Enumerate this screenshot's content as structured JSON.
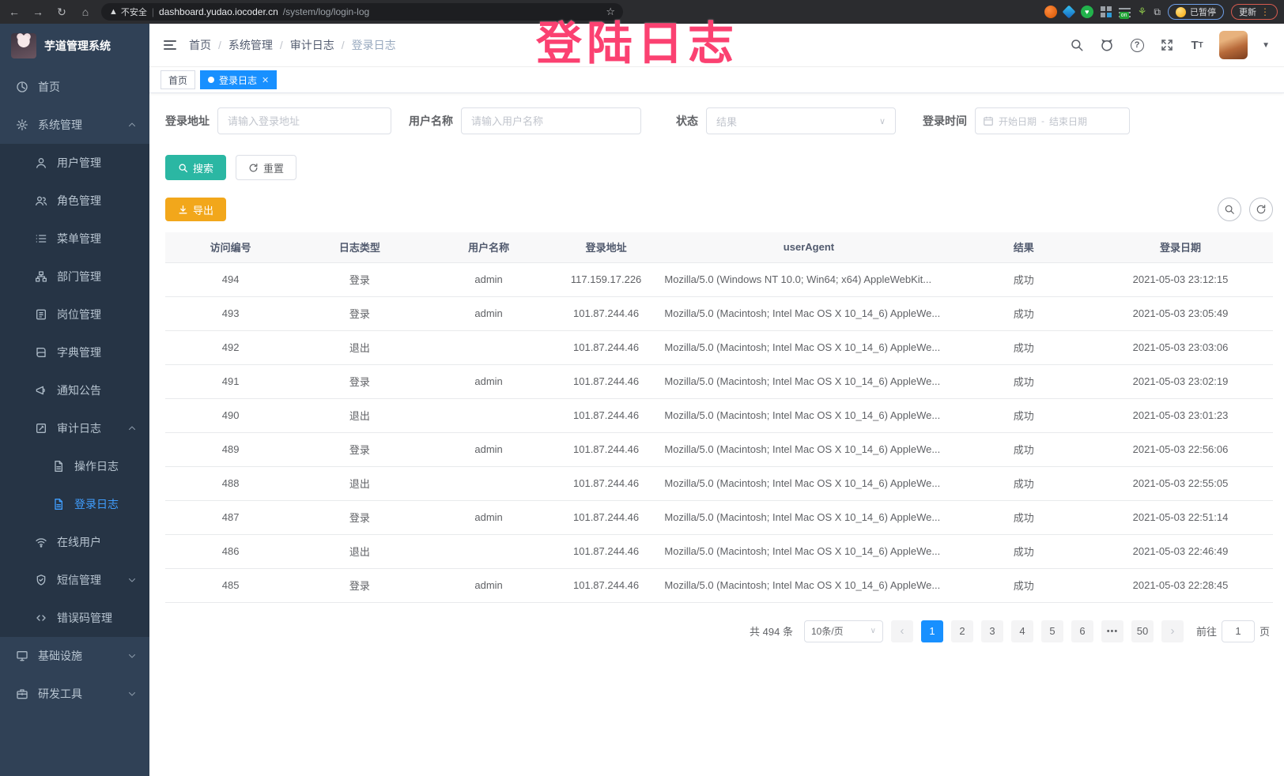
{
  "overlay": {
    "text": "登陆日志",
    "color": "#fb4171"
  },
  "browser": {
    "security_label": "不安全",
    "url_host": "dashboard.yudao.iocoder.cn",
    "url_path": "/system/log/login-log",
    "ext_badge": "on",
    "paused_label": "已暂停",
    "update_label": "更新"
  },
  "app": {
    "title": "芋道管理系统"
  },
  "breadcrumb": {
    "items": [
      "首页",
      "系统管理",
      "审计日志",
      "登录日志"
    ]
  },
  "tabs": [
    {
      "label": "首页",
      "active": false
    },
    {
      "label": "登录日志",
      "active": true
    }
  ],
  "sidebar": {
    "items": [
      {
        "label": "首页",
        "icon": "dashboard-icon",
        "level": 0,
        "sub": false
      },
      {
        "label": "系统管理",
        "icon": "gear-icon",
        "level": 0,
        "sub": false,
        "arrow": "up"
      },
      {
        "label": "用户管理",
        "icon": "user-icon",
        "level": 1,
        "sub": true
      },
      {
        "label": "角色管理",
        "icon": "users-icon",
        "level": 1,
        "sub": true
      },
      {
        "label": "菜单管理",
        "icon": "menu-list-icon",
        "level": 1,
        "sub": true
      },
      {
        "label": "部门管理",
        "icon": "org-tree-icon",
        "level": 1,
        "sub": true
      },
      {
        "label": "岗位管理",
        "icon": "id-badge-icon",
        "level": 1,
        "sub": true
      },
      {
        "label": "字典管理",
        "icon": "book-icon",
        "level": 1,
        "sub": true
      },
      {
        "label": "通知公告",
        "icon": "megaphone-icon",
        "level": 1,
        "sub": true
      },
      {
        "label": "审计日志",
        "icon": "edit-square-icon",
        "level": 1,
        "sub": true,
        "arrow": "up"
      },
      {
        "label": "操作日志",
        "icon": "document-icon",
        "level": 2,
        "sub": true
      },
      {
        "label": "登录日志",
        "icon": "document-icon",
        "level": 2,
        "sub": true,
        "active": true
      },
      {
        "label": "在线用户",
        "icon": "wifi-icon",
        "level": 1,
        "sub": true
      },
      {
        "label": "短信管理",
        "icon": "shield-check-icon",
        "level": 1,
        "sub": true,
        "arrow": "down"
      },
      {
        "label": "错误码管理",
        "icon": "code-icon",
        "level": 1,
        "sub": true
      },
      {
        "label": "基础设施",
        "icon": "monitor-icon",
        "level": 0,
        "sub": false,
        "arrow": "down"
      },
      {
        "label": "研发工具",
        "icon": "toolbox-icon",
        "level": 0,
        "sub": false,
        "arrow": "down"
      }
    ]
  },
  "filters": {
    "ip_label": "登录地址",
    "ip_placeholder": "请输入登录地址",
    "username_label": "用户名称",
    "username_placeholder": "请输入用户名称",
    "status_label": "状态",
    "status_placeholder": "结果",
    "time_label": "登录时间",
    "date_start_placeholder": "开始日期",
    "date_separator": "-",
    "date_end_placeholder": "结束日期",
    "search_label": "搜索",
    "reset_label": "重置",
    "export_label": "导出"
  },
  "table": {
    "headers": [
      "访问编号",
      "日志类型",
      "用户名称",
      "登录地址",
      "userAgent",
      "结果",
      "登录日期"
    ],
    "rows": [
      [
        "494",
        "登录",
        "admin",
        "117.159.17.226",
        "Mozilla/5.0 (Windows NT 10.0; Win64; x64) AppleWebKit...",
        "成功",
        "2021-05-03 23:12:15"
      ],
      [
        "493",
        "登录",
        "admin",
        "101.87.244.46",
        "Mozilla/5.0 (Macintosh; Intel Mac OS X 10_14_6) AppleWe...",
        "成功",
        "2021-05-03 23:05:49"
      ],
      [
        "492",
        "退出",
        "",
        "101.87.244.46",
        "Mozilla/5.0 (Macintosh; Intel Mac OS X 10_14_6) AppleWe...",
        "成功",
        "2021-05-03 23:03:06"
      ],
      [
        "491",
        "登录",
        "admin",
        "101.87.244.46",
        "Mozilla/5.0 (Macintosh; Intel Mac OS X 10_14_6) AppleWe...",
        "成功",
        "2021-05-03 23:02:19"
      ],
      [
        "490",
        "退出",
        "",
        "101.87.244.46",
        "Mozilla/5.0 (Macintosh; Intel Mac OS X 10_14_6) AppleWe...",
        "成功",
        "2021-05-03 23:01:23"
      ],
      [
        "489",
        "登录",
        "admin",
        "101.87.244.46",
        "Mozilla/5.0 (Macintosh; Intel Mac OS X 10_14_6) AppleWe...",
        "成功",
        "2021-05-03 22:56:06"
      ],
      [
        "488",
        "退出",
        "",
        "101.87.244.46",
        "Mozilla/5.0 (Macintosh; Intel Mac OS X 10_14_6) AppleWe...",
        "成功",
        "2021-05-03 22:55:05"
      ],
      [
        "487",
        "登录",
        "admin",
        "101.87.244.46",
        "Mozilla/5.0 (Macintosh; Intel Mac OS X 10_14_6) AppleWe...",
        "成功",
        "2021-05-03 22:51:14"
      ],
      [
        "486",
        "退出",
        "",
        "101.87.244.46",
        "Mozilla/5.0 (Macintosh; Intel Mac OS X 10_14_6) AppleWe...",
        "成功",
        "2021-05-03 22:46:49"
      ],
      [
        "485",
        "登录",
        "admin",
        "101.87.244.46",
        "Mozilla/5.0 (Macintosh; Intel Mac OS X 10_14_6) AppleWe...",
        "成功",
        "2021-05-03 22:28:45"
      ]
    ]
  },
  "pagination": {
    "total_label": "共 494 条",
    "page_size_label": "10条/页",
    "prev_label": "‹",
    "next_label": "›",
    "pages": [
      "1",
      "2",
      "3",
      "4",
      "5",
      "6",
      "•••",
      "50"
    ],
    "active_page": "1",
    "goto_label": "前往",
    "goto_value": "1",
    "goto_suffix": "页"
  },
  "colors": {
    "accent_blue": "#1890ff",
    "sidebar_bg": "#304156",
    "search_button": "#2bb7a3",
    "export_button": "#f2a71b",
    "overlay_pink": "#fb4171"
  }
}
